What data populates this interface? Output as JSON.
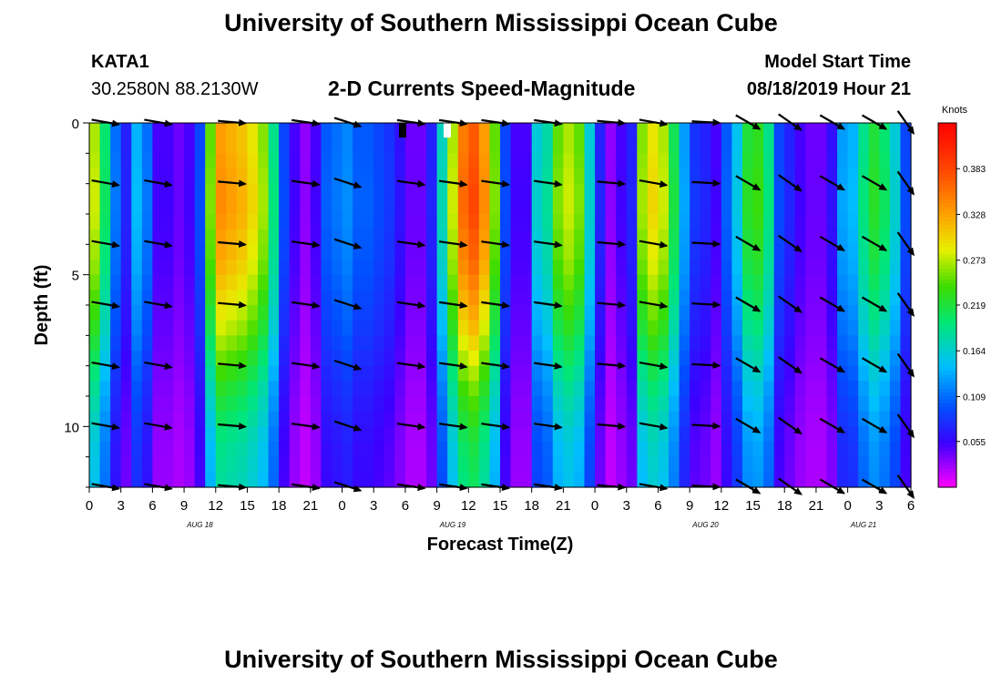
{
  "header": {
    "title": "University of Southern Mississippi Ocean Cube",
    "station": "KATA1",
    "coords": "30.2580N 88.2130W",
    "subtitle": "2-D Currents Speed-Magnitude",
    "model_label": "Model Start Time",
    "model_time": "08/18/2019 Hour 21"
  },
  "footer": {
    "title": "University of Southern Mississippi Ocean Cube"
  },
  "chart_data": {
    "type": "heatmap",
    "title": "2-D Currents Speed-Magnitude",
    "xlabel": "Forecast Time(Z)",
    "ylabel": "Depth (ft)",
    "x_range_hours": [
      0,
      78
    ],
    "y_range_ft": [
      0,
      12
    ],
    "x_ticks": [
      "0",
      "3",
      "6",
      "9",
      "12",
      "15",
      "18",
      "21",
      "0",
      "3",
      "6",
      "9",
      "12",
      "15",
      "18",
      "21",
      "0",
      "3",
      "6",
      "9",
      "12",
      "15",
      "18",
      "21",
      "0",
      "3",
      "6"
    ],
    "date_labels": [
      {
        "label": "AUG 18",
        "hour": 10.5
      },
      {
        "label": "AUG 19",
        "hour": 34.5
      },
      {
        "label": "AUG 20",
        "hour": 58.5
      },
      {
        "label": "AUG 21",
        "hour": 73.5
      }
    ],
    "y_ticks": [
      0,
      5,
      10
    ],
    "colorbar": {
      "unit": "Knots",
      "min": 0.0,
      "max": 0.438,
      "ticks": [
        "0.383",
        "0.328",
        "0.273",
        "0.219",
        "0.164",
        "0.109",
        "0.055"
      ],
      "tick_values": [
        0.383,
        0.328,
        0.273,
        0.219,
        0.164,
        0.109,
        0.055
      ]
    },
    "surface_speed_by_hour": [
      0.27,
      0.2,
      0.11,
      0.07,
      0.14,
      0.11,
      0.05,
      0.05,
      0.04,
      0.05,
      0.09,
      0.25,
      0.33,
      0.32,
      0.31,
      0.29,
      0.26,
      0.19,
      0.09,
      0.05,
      0.03,
      0.05,
      0.1,
      0.11,
      0.12,
      0.1,
      0.1,
      0.09,
      0.08,
      0.06,
      0.04,
      0.04,
      0.07,
      0.17,
      0.27,
      0.35,
      0.37,
      0.33,
      0.25,
      0.09,
      0.05,
      0.05,
      0.16,
      0.18,
      0.25,
      0.27,
      0.25,
      0.16,
      0.07,
      0.03,
      0.05,
      0.07,
      0.26,
      0.29,
      0.27,
      0.21,
      0.13,
      0.08,
      0.07,
      0.05,
      0.1,
      0.15,
      0.22,
      0.23,
      0.19,
      0.09,
      0.07,
      0.05,
      0.04,
      0.04,
      0.06,
      0.13,
      0.14,
      0.19,
      0.22,
      0.2,
      0.16,
      0.09
    ],
    "depth_factor": [
      1.0,
      1.0,
      1.01,
      1.02,
      1.03,
      1.03,
      1.02,
      1.0,
      0.99,
      0.97,
      0.94,
      0.91,
      0.88,
      0.85,
      0.81,
      0.77,
      0.73,
      0.69,
      0.66,
      0.63,
      0.6,
      0.58,
      0.57,
      0.56
    ],
    "vectors": {
      "hours": [
        1.5,
        6.5,
        13.5,
        20.5,
        24.5,
        30.5,
        34.5,
        38.5,
        43.5,
        49.5,
        53.5,
        58.5,
        62.5,
        66.5,
        70.5,
        74.5,
        77.5
      ],
      "depths_ft": [
        0,
        2,
        4,
        6,
        8,
        10,
        12
      ],
      "angle_deg": [
        10,
        10,
        5,
        8,
        18,
        8,
        8,
        8,
        8,
        5,
        10,
        3,
        30,
        35,
        30,
        30,
        55
      ]
    }
  }
}
